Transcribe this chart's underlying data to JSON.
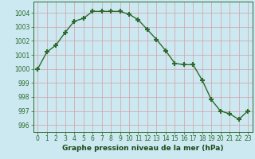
{
  "x": [
    0,
    1,
    2,
    3,
    4,
    5,
    6,
    7,
    8,
    9,
    10,
    11,
    12,
    13,
    14,
    15,
    16,
    17,
    18,
    19,
    20,
    21,
    22,
    23
  ],
  "y": [
    1000.0,
    1001.2,
    1001.7,
    1002.6,
    1003.4,
    1003.6,
    1004.1,
    1004.1,
    1004.1,
    1004.1,
    1003.9,
    1003.5,
    1002.8,
    1002.1,
    1001.3,
    1000.4,
    1000.3,
    1000.3,
    999.2,
    997.8,
    997.0,
    996.8,
    996.4,
    997.0
  ],
  "line_color": "#2d6a2d",
  "marker": "+",
  "marker_size": 5,
  "bg_color": "#cce8f0",
  "grid_color_major": "#b0c8d0",
  "grid_color_minor": "#ddeef4",
  "xlabel": "Graphe pression niveau de la mer (hPa)",
  "xlabel_fontsize": 6.5,
  "xlabel_color": "#1a4a1a",
  "ylim": [
    995.5,
    1004.8
  ],
  "xlim": [
    -0.5,
    23.5
  ],
  "yticks": [
    996,
    997,
    998,
    999,
    1000,
    1001,
    1002,
    1003,
    1004
  ],
  "xticks": [
    0,
    1,
    2,
    3,
    4,
    5,
    6,
    7,
    8,
    9,
    10,
    11,
    12,
    13,
    14,
    15,
    16,
    17,
    18,
    19,
    20,
    21,
    22,
    23
  ],
  "tick_fontsize": 5.5,
  "tick_color": "#2d6a2d",
  "spine_color": "#2d6a2d"
}
